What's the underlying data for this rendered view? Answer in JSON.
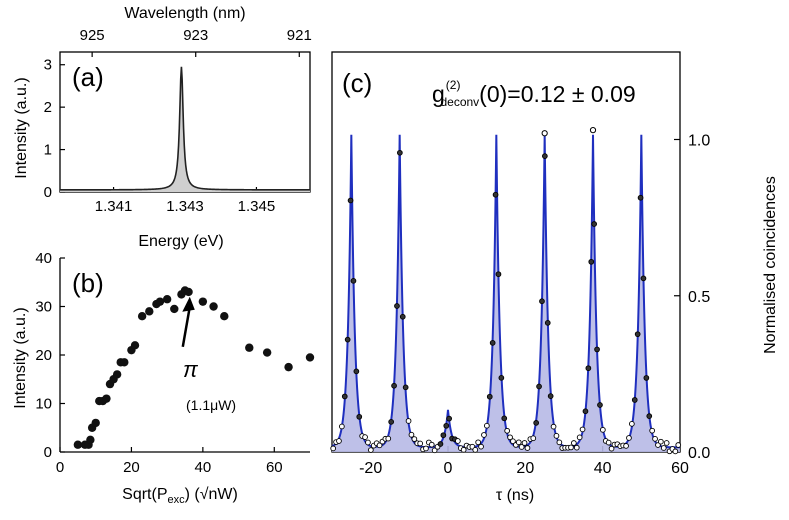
{
  "chart_data": [
    {
      "panel": "a",
      "type": "line",
      "label": "(a)",
      "xlabel": "Energy (eV)",
      "ylabel": "Intensity (a.u.)",
      "xlim": [
        1.3395,
        1.3465
      ],
      "ylim": [
        0,
        3.3
      ],
      "xticks": [
        1.341,
        1.343,
        1.345
      ],
      "xtick_labels": [
        "1.341",
        "1.343",
        "1.345"
      ],
      "yticks": [
        0,
        1,
        2,
        3
      ],
      "ytick_labels": [
        "0",
        "1",
        "2",
        "3"
      ],
      "top_axis": {
        "label": "Wavelength (nm)",
        "ticks": [
          925,
          923,
          921
        ],
        "tick_energies": [
          1.3404,
          1.3433,
          1.3462
        ]
      },
      "peak": {
        "center": 1.3429,
        "height": 2.9,
        "fwhm": 0.00012,
        "background": 0.05
      }
    },
    {
      "panel": "b",
      "type": "scatter",
      "label": "(b)",
      "xlabel": "Sqrt(P",
      "xlabel_sub": "exc",
      "xlabel_tail": ") (√nW)",
      "ylabel": "Intensity (a.u.)",
      "xlim": [
        0,
        70
      ],
      "ylim": [
        0,
        40
      ],
      "xticks": [
        0,
        20,
        40,
        60
      ],
      "xtick_labels": [
        "0",
        "20",
        "40",
        "60"
      ],
      "yticks": [
        0,
        10,
        20,
        30,
        40
      ],
      "ytick_labels": [
        "0",
        "10",
        "20",
        "30",
        "40"
      ],
      "x": [
        5,
        7,
        8,
        8.5,
        9,
        10,
        11,
        12,
        13,
        14,
        15,
        16,
        17,
        18,
        20,
        21,
        23,
        25,
        27,
        28,
        30,
        32,
        34,
        35,
        36,
        40,
        43,
        46,
        53,
        58,
        64,
        70
      ],
      "y": [
        1.5,
        1.5,
        1.5,
        2.5,
        5,
        6,
        10.5,
        10.5,
        11,
        14,
        15,
        16,
        18.5,
        18.5,
        21,
        22,
        28,
        29,
        30.5,
        31,
        31.5,
        29.5,
        32.5,
        33.3,
        33,
        31,
        30,
        28,
        21.5,
        20.5,
        17.5,
        19.5
      ],
      "annotation": {
        "symbol": "π",
        "text": "(1.1μW)",
        "arrow_to": [
          35.5,
          32
        ]
      }
    },
    {
      "panel": "c",
      "type": "line",
      "label": "(c)",
      "xlabel": "τ (ns)",
      "ylabel": "Normalised coincidences",
      "xlim": [
        -30,
        60
      ],
      "ylim": [
        0,
        1.28
      ],
      "xticks": [
        -20,
        0,
        20,
        40,
        60
      ],
      "xtick_labels": [
        "-20",
        "0",
        "20",
        "40",
        "60"
      ],
      "yticks": [
        0.0,
        0.5,
        1.0
      ],
      "ytick_labels": [
        "0.0",
        "0.5",
        "1.0"
      ],
      "annotation": {
        "main": "g",
        "sup": "(2)",
        "sub": "deconv",
        "rest": "(0)=0.12 ± 0.09"
      },
      "peak_width_ns": 0.9,
      "peaks": [
        {
          "tau": -25,
          "height": 1.0
        },
        {
          "tau": -12.5,
          "height": 1.0
        },
        {
          "tau": 0,
          "height": 0.12
        },
        {
          "tau": 12.5,
          "height": 1.0
        },
        {
          "tau": 25,
          "height": 1.0
        },
        {
          "tau": 37.5,
          "height": 1.0
        },
        {
          "tau": 50,
          "height": 1.0
        }
      ],
      "outlier_points": [
        {
          "tau": 25,
          "value": 1.02
        },
        {
          "tau": 37.5,
          "value": 1.03
        }
      ],
      "colors": {
        "line": "#1f2fbf",
        "fill": "#b7b9e6"
      }
    }
  ]
}
